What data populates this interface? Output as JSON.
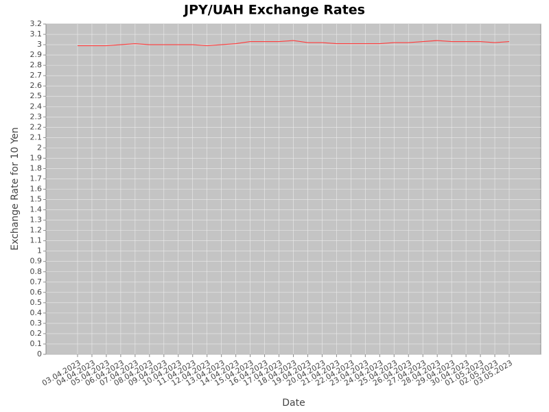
{
  "chart_data": {
    "type": "line",
    "title": "JPY/UAH Exchange Rates",
    "x_label": "Date",
    "y_label": "Exchange Rate for 10 Yen",
    "categories": [
      "03.04.2023",
      "04.04.2023",
      "05.04.2023",
      "06.04.2023",
      "07.04.2023",
      "08.04.2023",
      "09.04.2023",
      "10.04.2023",
      "11.04.2023",
      "12.04.2023",
      "13.04.2023",
      "14.04.2023",
      "15.04.2023",
      "16.04.2023",
      "17.04.2023",
      "18.04.2023",
      "19.04.2023",
      "20.04.2023",
      "21.04.2023",
      "22.04.2023",
      "23.04.2023",
      "24.04.2023",
      "25.04.2023",
      "26.04.2023",
      "27.04.2023",
      "28.04.2023",
      "29.04.2023",
      "30.04.2023",
      "01.05.2023",
      "02.05.2023",
      "03.05.2023"
    ],
    "series": [
      {
        "name": "JPY/UAH",
        "color": "#ff3b3b",
        "values": [
          2.99,
          2.99,
          2.99,
          3.0,
          3.01,
          3.0,
          3.0,
          3.0,
          3.0,
          2.99,
          3.0,
          3.01,
          3.03,
          3.03,
          3.03,
          3.04,
          3.02,
          3.02,
          3.01,
          3.01,
          3.01,
          3.01,
          3.02,
          3.02,
          3.03,
          3.04,
          3.03,
          3.03,
          3.03,
          3.02,
          3.03
        ]
      }
    ],
    "ylim": [
      0,
      3.2
    ],
    "yticks": [
      0,
      0.1,
      0.2,
      0.3,
      0.4,
      0.5,
      0.6,
      0.7,
      0.8,
      0.9,
      1,
      1.1,
      1.2,
      1.3,
      1.4,
      1.5,
      1.6,
      1.7,
      1.8,
      1.9,
      2,
      2.1,
      2.2,
      2.3,
      2.4,
      2.5,
      2.6,
      2.7,
      2.8,
      2.9,
      3,
      3.1,
      3.2
    ],
    "grid": true
  }
}
